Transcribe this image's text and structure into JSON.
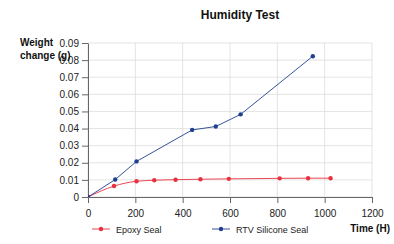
{
  "chart_data": {
    "type": "line",
    "title": "Humidity Test",
    "x_label": "Time (H)",
    "y_label": "Weight change (g)",
    "series": [
      {
        "name": "Epoxy Seal",
        "color": "#e8313f",
        "marker": "circle",
        "line_style": "curve",
        "x": [
          0,
          110,
          205,
          280,
          370,
          475,
          595,
          810,
          930,
          1025
        ],
        "values": [
          0,
          0.0064,
          0.0092,
          0.0098,
          0.0101,
          0.0104,
          0.0106,
          0.0109,
          0.011,
          0.011
        ]
      },
      {
        "name": "RTV Silicone Seal",
        "color": "#1f3f8f",
        "marker": "circle",
        "line_style": "solid",
        "x": [
          0,
          115,
          205,
          440,
          540,
          645,
          950
        ],
        "values": [
          0,
          0.0102,
          0.0208,
          0.0392,
          0.0412,
          0.0483,
          0.0823
        ]
      }
    ],
    "xlim": [
      0,
      1200
    ],
    "xticks": [
      0,
      200,
      400,
      600,
      800,
      1000,
      1200
    ],
    "ylim": [
      0,
      0.09
    ],
    "yticks": [
      0,
      0.01,
      0.02,
      0.03,
      0.04,
      0.05,
      0.06,
      0.07,
      0.08,
      0.09
    ],
    "grid": true,
    "legend": "bottom"
  }
}
